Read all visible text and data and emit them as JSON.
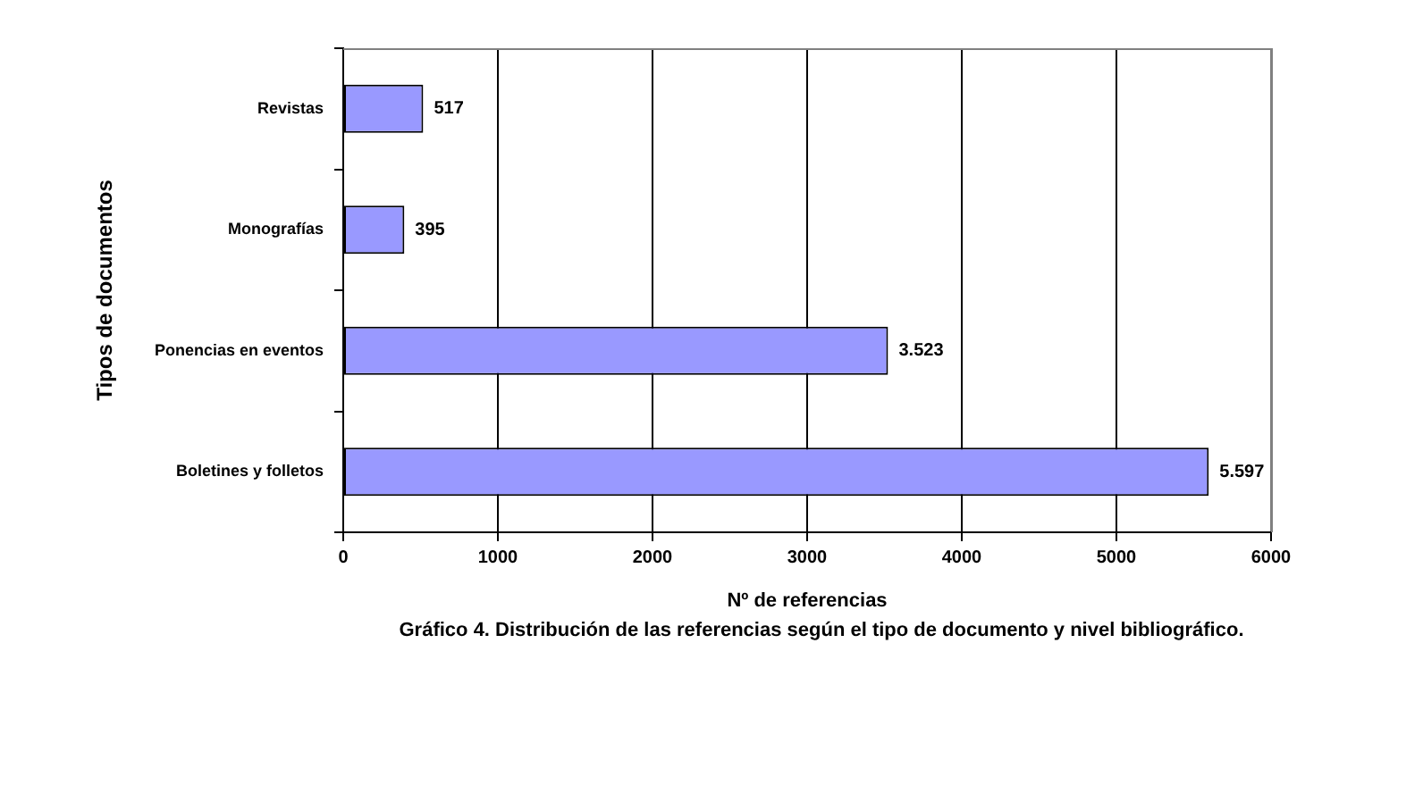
{
  "chart_data": {
    "type": "bar",
    "orientation": "horizontal",
    "categories": [
      "Revistas",
      "Monografías",
      "Ponencias en eventos",
      "Boletines y folletos"
    ],
    "values": [
      517,
      395,
      3523,
      5597
    ],
    "value_labels": [
      "517",
      "395",
      "3.523",
      "5.597"
    ],
    "color": "#9999ff",
    "xlim": [
      0,
      6000
    ],
    "xticks": [
      0,
      1000,
      2000,
      3000,
      4000,
      5000,
      6000
    ],
    "xlabel": "Nº de referencias",
    "ylabel": "Tipos de documentos",
    "annotations": [
      "Gráfico 4. Distribución de las referencias según el tipo de documento y nivel bibliográfico."
    ],
    "grid": "x"
  }
}
